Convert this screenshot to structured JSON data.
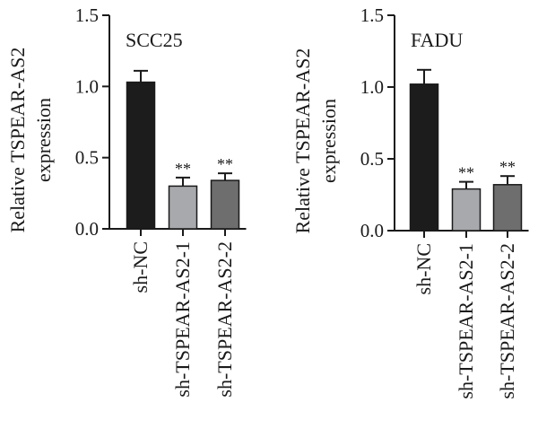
{
  "chart_data": [
    {
      "type": "bar",
      "title": "SCC25",
      "ylabel": [
        "Relative TSPEAR-AS2",
        "expression"
      ],
      "categories": [
        "sh-NC",
        "sh-TSPEAR-AS2-1",
        "sh-TSPEAR-AS2-2"
      ],
      "values": [
        1.03,
        0.3,
        0.34
      ],
      "errors": [
        0.08,
        0.06,
        0.05
      ],
      "significance": [
        "",
        "**",
        "**"
      ],
      "colors": [
        "#1c1c1c",
        "#a7a9ac",
        "#6e6e6e"
      ],
      "ylim": [
        0,
        1.5
      ],
      "yticks": [
        "0.0",
        "0.5",
        "1.0",
        "1.5"
      ],
      "grid": false
    },
    {
      "type": "bar",
      "title": "FADU",
      "ylabel": [
        "Relative TSPEAR-AS2",
        "expression"
      ],
      "categories": [
        "sh-NC",
        "sh-TSPEAR-AS2-1",
        "sh-TSPEAR-AS2-2"
      ],
      "values": [
        1.02,
        0.29,
        0.32
      ],
      "errors": [
        0.1,
        0.05,
        0.06
      ],
      "significance": [
        "",
        "**",
        "**"
      ],
      "colors": [
        "#1c1c1c",
        "#a7a9ac",
        "#6e6e6e"
      ],
      "ylim": [
        0,
        1.5
      ],
      "yticks": [
        "0.0",
        "0.5",
        "1.0",
        "1.5"
      ],
      "grid": false
    }
  ]
}
